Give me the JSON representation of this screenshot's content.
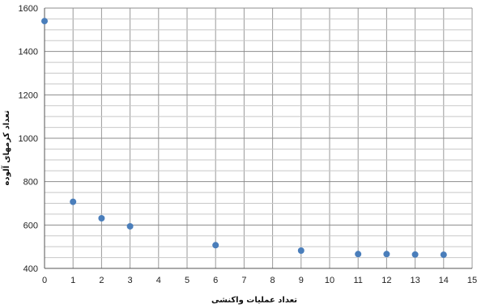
{
  "chart_data": {
    "type": "scatter",
    "xlabel": "تعداد عملیات واکنشی",
    "ylabel": "تعداد کرمهای آلوده",
    "xlim": [
      0,
      15
    ],
    "ylim": [
      400,
      1600
    ],
    "x_ticks": [
      "0",
      "1",
      "2",
      "3",
      "4",
      "5",
      "6",
      "7",
      "8",
      "9",
      "10",
      "11",
      "12",
      "13",
      "14",
      "15"
    ],
    "y_ticks": [
      "400",
      "600",
      "800",
      "1000",
      "1200",
      "1400",
      "1600"
    ],
    "grid": true,
    "legend": "none",
    "series": [
      {
        "x": [
          0,
          1,
          2,
          3,
          6,
          9,
          11,
          12,
          13,
          14
        ],
        "y": [
          1540,
          707,
          631,
          594,
          507,
          482,
          466,
          466,
          464,
          463
        ],
        "color": "#4a7ebb"
      }
    ]
  }
}
